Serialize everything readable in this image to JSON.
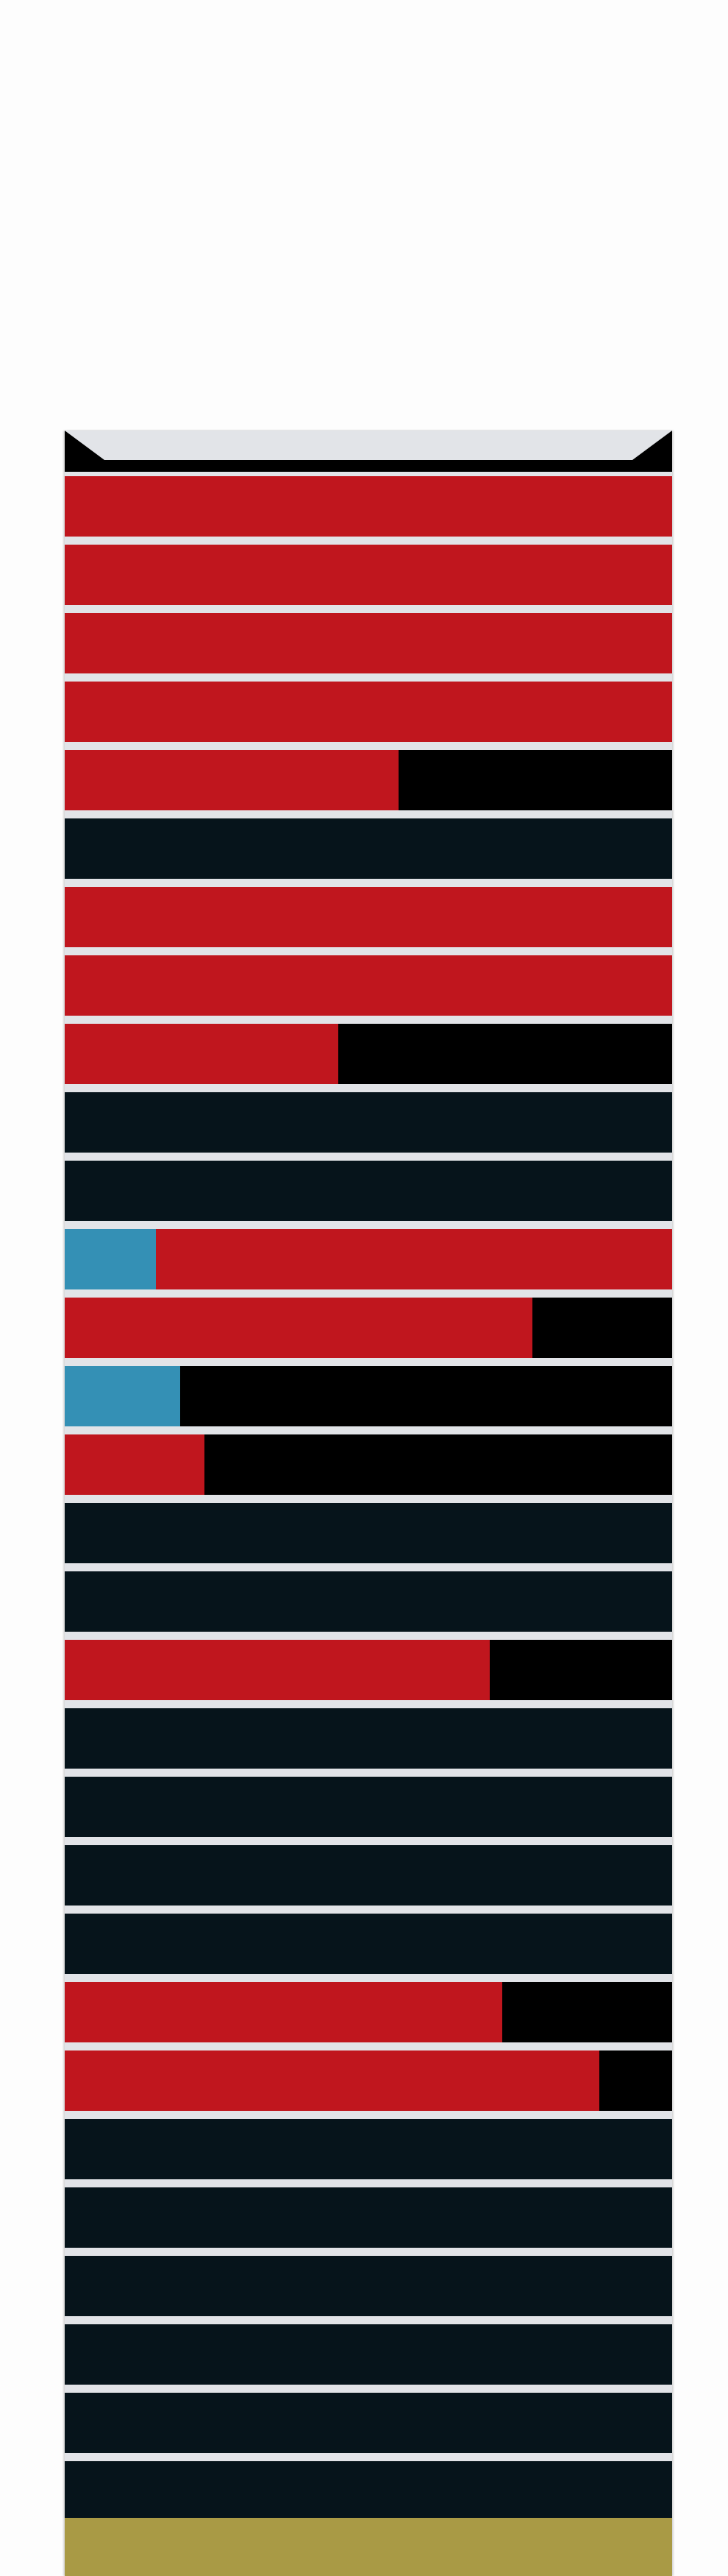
{
  "colors": {
    "background": "#fdfdfd",
    "separator": "#e2e4e8",
    "cap": "#000000",
    "red": "#c0161e",
    "blue": "#3490b5",
    "black": "#000000",
    "dark": "#06141b",
    "gold": "#a99a45"
  },
  "rows": [
    {
      "segments": [
        {
          "color": "red",
          "fraction": 1.0
        }
      ]
    },
    {
      "segments": [
        {
          "color": "red",
          "fraction": 1.0
        }
      ]
    },
    {
      "segments": [
        {
          "color": "red",
          "fraction": 1.0
        }
      ]
    },
    {
      "segments": [
        {
          "color": "red",
          "fraction": 1.0
        }
      ]
    },
    {
      "segments": [
        {
          "color": "red",
          "fraction": 0.55
        },
        {
          "color": "black",
          "fraction": 0.45
        }
      ]
    },
    {
      "segments": [
        {
          "color": "dark",
          "fraction": 1.0
        }
      ]
    },
    {
      "segments": [
        {
          "color": "red",
          "fraction": 1.0
        }
      ]
    },
    {
      "segments": [
        {
          "color": "red",
          "fraction": 1.0
        }
      ]
    },
    {
      "segments": [
        {
          "color": "red",
          "fraction": 0.45
        },
        {
          "color": "black",
          "fraction": 0.55
        }
      ]
    },
    {
      "segments": [
        {
          "color": "dark",
          "fraction": 1.0
        }
      ]
    },
    {
      "segments": [
        {
          "color": "dark",
          "fraction": 1.0
        }
      ]
    },
    {
      "segments": [
        {
          "color": "blue",
          "fraction": 0.15
        },
        {
          "color": "red",
          "fraction": 0.85
        }
      ]
    },
    {
      "segments": [
        {
          "color": "red",
          "fraction": 0.77
        },
        {
          "color": "black",
          "fraction": 0.23
        }
      ]
    },
    {
      "segments": [
        {
          "color": "blue",
          "fraction": 0.19
        },
        {
          "color": "black",
          "fraction": 0.81
        }
      ]
    },
    {
      "segments": [
        {
          "color": "red",
          "fraction": 0.23
        },
        {
          "color": "black",
          "fraction": 0.77
        }
      ]
    },
    {
      "segments": [
        {
          "color": "dark",
          "fraction": 1.0
        }
      ]
    },
    {
      "segments": [
        {
          "color": "dark",
          "fraction": 1.0
        }
      ]
    },
    {
      "segments": [
        {
          "color": "red",
          "fraction": 0.7
        },
        {
          "color": "black",
          "fraction": 0.3
        }
      ]
    },
    {
      "segments": [
        {
          "color": "dark",
          "fraction": 1.0
        }
      ]
    },
    {
      "segments": [
        {
          "color": "dark",
          "fraction": 1.0
        }
      ]
    },
    {
      "segments": [
        {
          "color": "dark",
          "fraction": 1.0
        }
      ]
    },
    {
      "segments": [
        {
          "color": "dark",
          "fraction": 1.0
        }
      ]
    },
    {
      "segments": [
        {
          "color": "red",
          "fraction": 0.72
        },
        {
          "color": "black",
          "fraction": 0.28
        }
      ]
    },
    {
      "segments": [
        {
          "color": "red",
          "fraction": 0.88
        },
        {
          "color": "black",
          "fraction": 0.12
        }
      ]
    },
    {
      "segments": [
        {
          "color": "dark",
          "fraction": 1.0
        }
      ]
    },
    {
      "segments": [
        {
          "color": "dark",
          "fraction": 1.0
        }
      ]
    },
    {
      "segments": [
        {
          "color": "dark",
          "fraction": 1.0
        }
      ]
    },
    {
      "segments": [
        {
          "color": "dark",
          "fraction": 1.0
        }
      ]
    },
    {
      "segments": [
        {
          "color": "dark",
          "fraction": 1.0
        }
      ]
    },
    {
      "segments": [
        {
          "color": "dark",
          "fraction": 1.0
        }
      ]
    }
  ]
}
